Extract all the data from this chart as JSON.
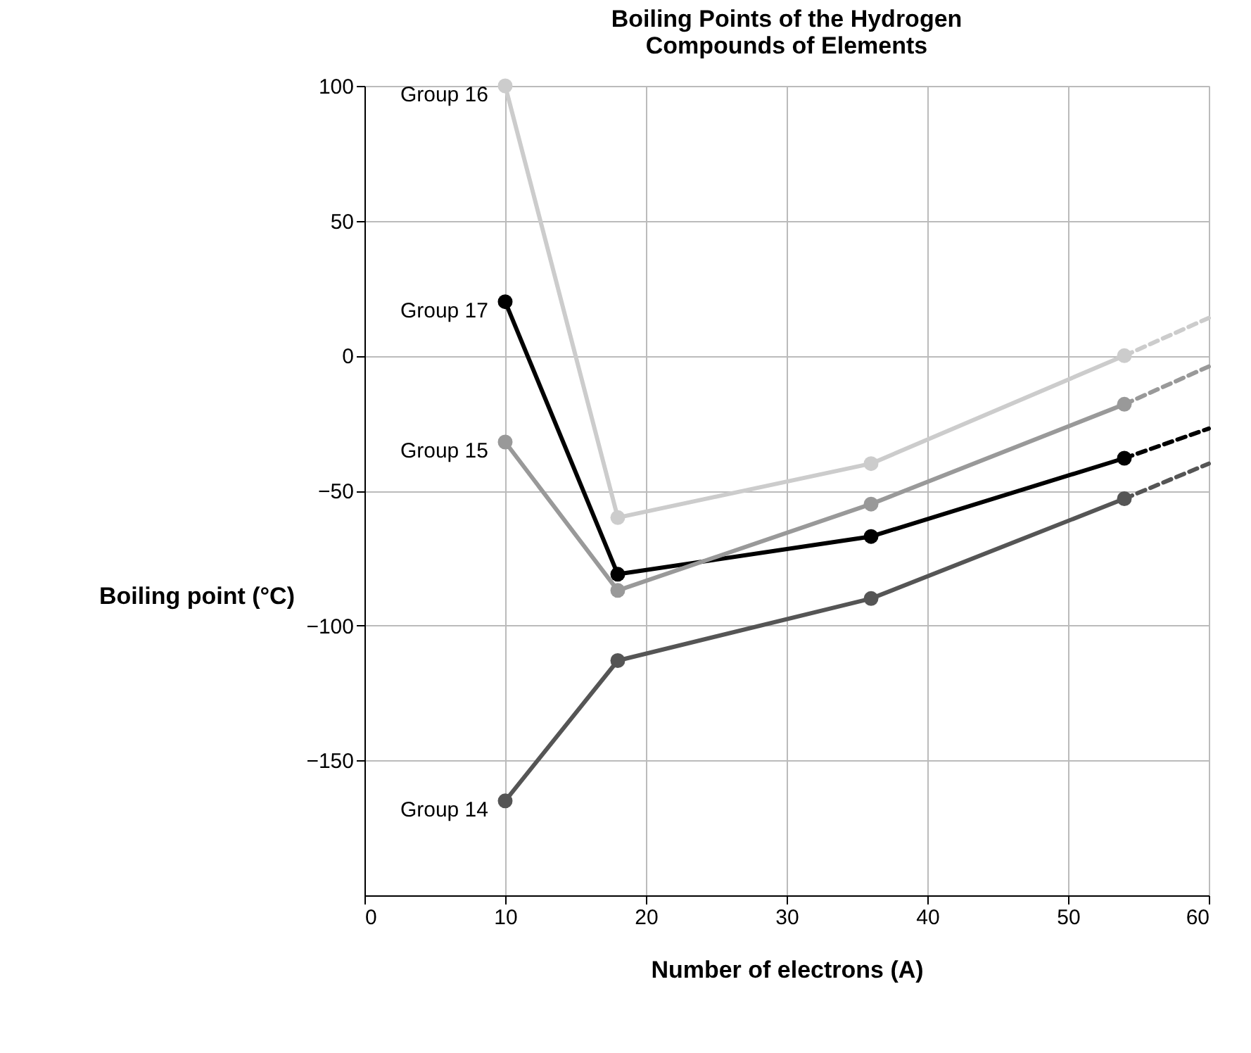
{
  "chart_data": {
    "type": "line",
    "title": "Boiling Points of the Hydrogen\nCompounds of Elements",
    "xlabel": "Number of electrons (A)",
    "ylabel": "Boiling point (°C)",
    "xlim": [
      0,
      60
    ],
    "ylim": [
      -200,
      100
    ],
    "xticks": [
      0,
      10,
      20,
      30,
      40,
      50,
      60
    ],
    "yticks": [
      -150,
      -100,
      -50,
      0,
      50,
      100
    ],
    "grid": true,
    "legend": false,
    "marker": "circle",
    "line_style": "solid",
    "series": [
      {
        "name": "Group 16",
        "color": "#cccccc",
        "x": [
          10,
          18,
          36,
          54
        ],
        "values": [
          100,
          -60,
          -40,
          0
        ]
      },
      {
        "name": "Group 17",
        "color": "#000000",
        "x": [
          10,
          18,
          36,
          54
        ],
        "values": [
          20,
          -81,
          -67,
          -38
        ]
      },
      {
        "name": "Group 15",
        "color": "#999999",
        "x": [
          10,
          18,
          36,
          54
        ],
        "values": [
          -32,
          -87,
          -55,
          -18
        ]
      },
      {
        "name": "Group 14",
        "color": "#555555",
        "x": [
          10,
          18,
          36,
          54
        ],
        "values": [
          -165,
          -113,
          -90,
          -53
        ]
      },
      {
        "color": "#cccccc",
        "x": [
          54,
          60
        ],
        "values": [
          0,
          14
        ],
        "line_style": "dashed",
        "marker": "none"
      },
      {
        "color": "#999999",
        "x": [
          54,
          60
        ],
        "values": [
          -18,
          -4
        ],
        "line_style": "dashed",
        "marker": "none"
      },
      {
        "color": "#000000",
        "x": [
          54,
          60
        ],
        "values": [
          -38,
          -27
        ],
        "line_style": "dashed",
        "marker": "none"
      },
      {
        "color": "#555555",
        "x": [
          54,
          60
        ],
        "values": [
          -53,
          -40
        ],
        "line_style": "dashed",
        "marker": "none"
      }
    ]
  }
}
